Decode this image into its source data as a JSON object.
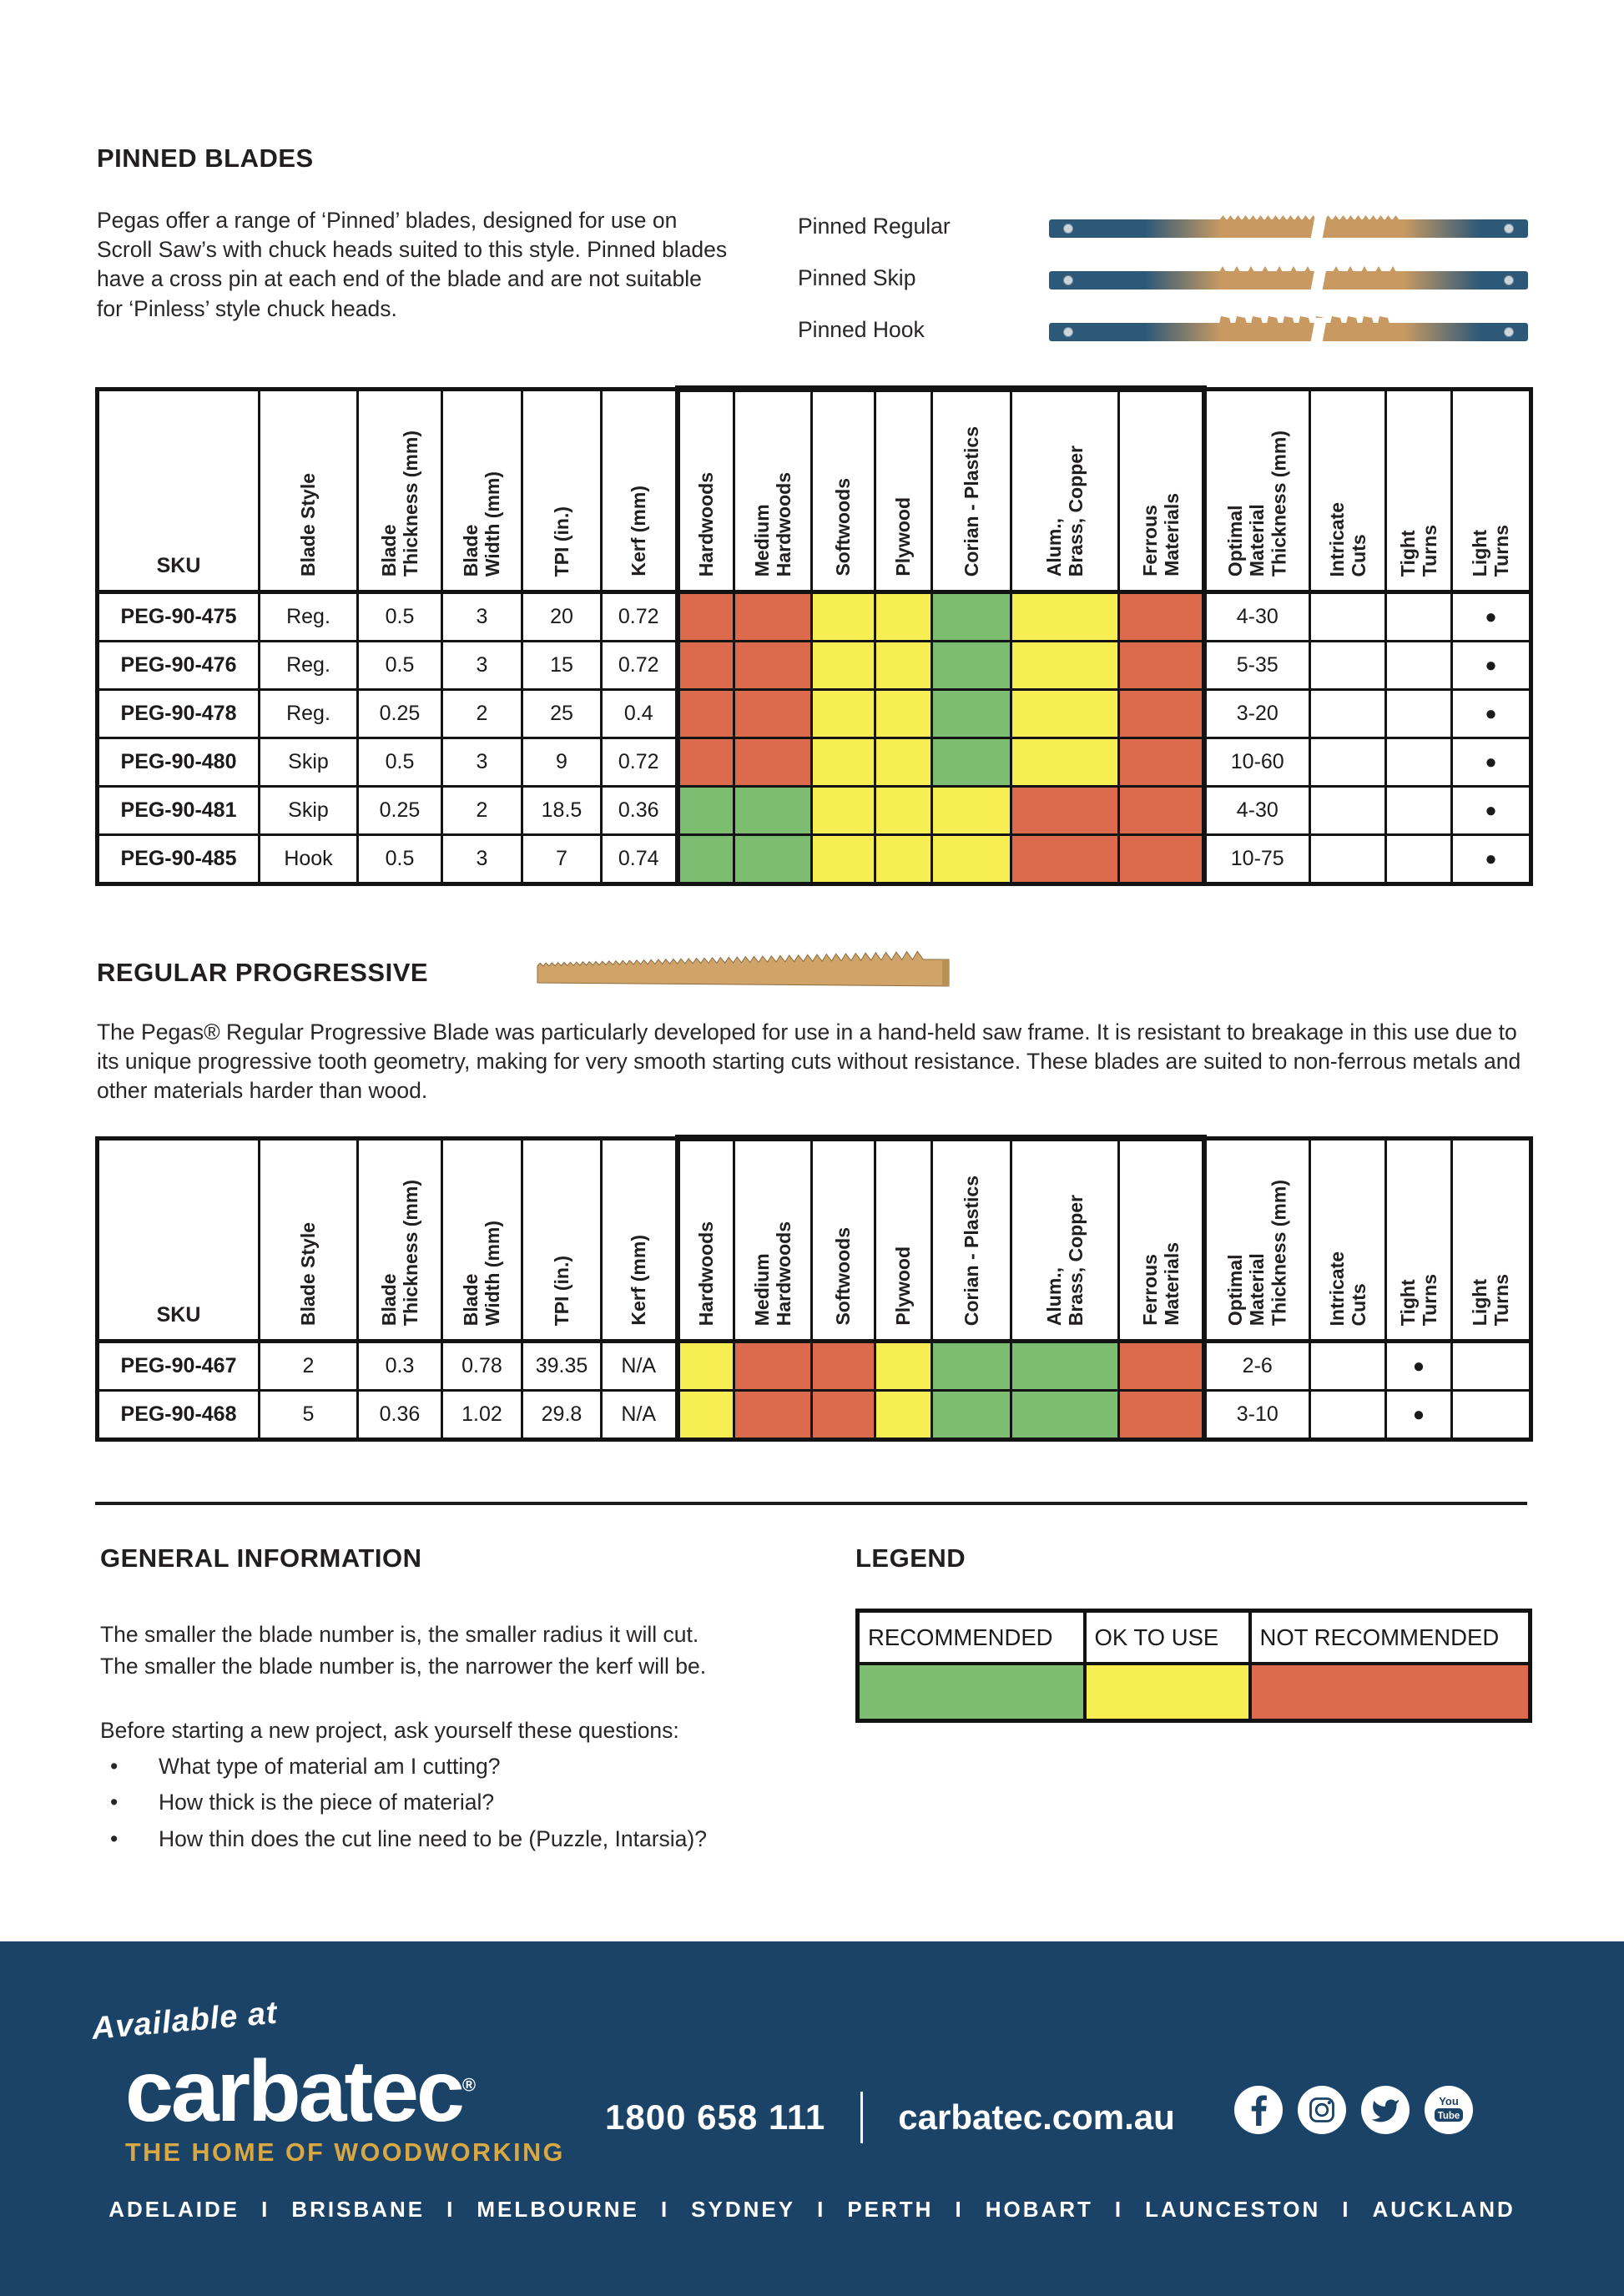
{
  "pinned": {
    "title": "PINNED BLADES",
    "description": "Pegas offer a range of ‘Pinned’ blades, designed for use on Scroll Saw’s with chuck heads suited to this style. Pinned blades have a cross pin at each end of the blade and are not suitable for ‘Pinless’ style chuck heads.",
    "blades": [
      {
        "label": "Pinned Regular",
        "type": "regular"
      },
      {
        "label": "Pinned Skip",
        "type": "skip"
      },
      {
        "label": "Pinned Hook",
        "type": "hook"
      }
    ]
  },
  "columns": [
    "SKU",
    "Blade Style",
    "Blade\nThickness (mm)",
    "Blade\nWidth (mm)",
    "TPI (in.)",
    "Kerf (mm)",
    "Hardwoods",
    "Medium\nHardwoods",
    "Softwoods",
    "Plywood",
    "Corian - Plastics",
    "Alum.,\nBrass, Copper",
    "Ferrous\nMaterials",
    "Optimal\nMaterial\nThickness (mm)",
    "Intricate\nCuts",
    "Tight\nTurns",
    "Light\nTurns"
  ],
  "pinned_table": {
    "rows": [
      [
        "PEG-90-475",
        "Reg.",
        "0.5",
        "3",
        "20",
        "0.72",
        "not",
        "not",
        "ok",
        "ok",
        "rec",
        "ok",
        "not",
        "4-30",
        "",
        "",
        "●"
      ],
      [
        "PEG-90-476",
        "Reg.",
        "0.5",
        "3",
        "15",
        "0.72",
        "not",
        "not",
        "ok",
        "ok",
        "rec",
        "ok",
        "not",
        "5-35",
        "",
        "",
        "●"
      ],
      [
        "PEG-90-478",
        "Reg.",
        "0.25",
        "2",
        "25",
        "0.4",
        "not",
        "not",
        "ok",
        "ok",
        "rec",
        "ok",
        "not",
        "3-20",
        "",
        "",
        "●"
      ],
      [
        "PEG-90-480",
        "Skip",
        "0.5",
        "3",
        "9",
        "0.72",
        "not",
        "not",
        "ok",
        "ok",
        "rec",
        "ok",
        "not",
        "10-60",
        "",
        "",
        "●"
      ],
      [
        "PEG-90-481",
        "Skip",
        "0.25",
        "2",
        "18.5",
        "0.36",
        "rec",
        "rec",
        "ok",
        "ok",
        "ok",
        "not",
        "not",
        "4-30",
        "",
        "",
        "●"
      ],
      [
        "PEG-90-485",
        "Hook",
        "0.5",
        "3",
        "7",
        "0.74",
        "rec",
        "rec",
        "ok",
        "ok",
        "ok",
        "not",
        "not",
        "10-75",
        "",
        "",
        "●"
      ]
    ]
  },
  "progressive": {
    "title": "REGULAR PROGRESSIVE",
    "description": "The Pegas® Regular Progressive Blade was particularly developed for use in a hand-held saw frame. It is resistant to breakage in this use due to its unique progressive tooth geometry, making for very smooth starting cuts without resistance. These blades are suited to non-ferrous metals and other materials harder than wood."
  },
  "progressive_table": {
    "rows": [
      [
        "PEG-90-467",
        "2",
        "0.3",
        "0.78",
        "39.35",
        "N/A",
        "ok",
        "not",
        "not",
        "ok",
        "rec",
        "rec",
        "not",
        "2-6",
        "",
        "●",
        ""
      ],
      [
        "PEG-90-468",
        "5",
        "0.36",
        "1.02",
        "29.8",
        "N/A",
        "ok",
        "not",
        "not",
        "ok",
        "rec",
        "rec",
        "not",
        "3-10",
        "",
        "●",
        ""
      ]
    ]
  },
  "general": {
    "title": "GENERAL INFORMATION",
    "lines": [
      "The smaller the blade number is, the smaller radius it will cut.",
      "The smaller the blade number is, the narrower the kerf will be."
    ],
    "questions_intro": "Before starting a new project, ask yourself these questions:",
    "bullet_glyph": "•",
    "bullets": [
      "What type of material am I cutting?",
      "How thick is the piece of material?",
      "How thin does the cut line need to be (Puzzle, Intarsia)?"
    ]
  },
  "legend": {
    "title": "LEGEND",
    "items": [
      {
        "label": "RECOMMENDED",
        "key": "rec"
      },
      {
        "label": "OK TO USE",
        "key": "ok"
      },
      {
        "label": "NOT RECOMMENDED",
        "key": "not"
      }
    ],
    "colors": {
      "rec": "#7cbd72",
      "ok": "#f6ee52",
      "not": "#dc6a4c"
    }
  },
  "footer": {
    "available_at": "Available at",
    "brand": "carbatec",
    "registered": "®",
    "tagline": "THE HOME OF WOODWORKING",
    "phone": "1800 658 111",
    "website": "carbatec.com.au",
    "cities": [
      "ADELAIDE",
      "BRISBANE",
      "MELBOURNE",
      "SYDNEY",
      "PERTH",
      "HOBART",
      "LAUNCESTON",
      "AUCKLAND"
    ],
    "city_separator": "I",
    "social_icons": [
      "facebook",
      "instagram",
      "twitter",
      "youtube"
    ],
    "colors": {
      "background": "#1b4368",
      "gold": "#d9a843"
    }
  },
  "blade_colors": {
    "steel_blue": "#2d5878",
    "tan": "#c89a62",
    "pin": "#ccd5da"
  }
}
